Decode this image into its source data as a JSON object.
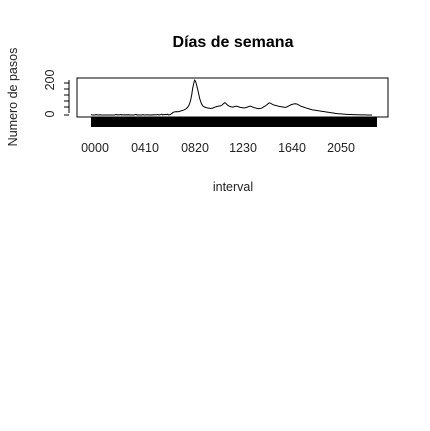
{
  "chart_data": {
    "type": "line",
    "title": "Días de semana",
    "xlabel": "interval",
    "ylabel": "Numero de pasos",
    "x_tick_labels": [
      "0000",
      "0410",
      "0820",
      "1230",
      "1640",
      "2050"
    ],
    "y_tick_labels": [
      "0",
      "200"
    ],
    "xlim": [
      0,
      287
    ],
    "ylim": [
      0,
      230
    ],
    "grid": false,
    "series": [
      {
        "values": [
          2.3,
          0.5,
          0.2,
          0.2,
          0.1,
          2.3,
          0.5,
          0.9,
          0,
          1.6,
          0.3,
          0.2,
          0.4,
          0,
          0,
          0,
          0,
          0,
          0,
          0,
          0,
          0,
          0,
          0,
          0,
          4.2,
          0.7,
          1.3,
          0.7,
          2,
          3.2,
          0,
          2.2,
          0,
          1.7,
          0,
          2.5,
          0,
          2.5,
          0,
          0.2,
          0,
          0,
          0,
          1.8,
          4.4,
          0.4,
          0.5,
          0,
          0,
          0,
          0,
          2.2,
          0.5,
          0,
          0.7,
          0.7,
          0.5,
          1.2,
          0.2,
          0.7,
          0,
          1.5,
          0.6,
          1.5,
          1.3,
          0.7,
          3.9,
          0,
          1.8,
          2.6,
          5.6,
          0.5,
          3,
          2.2,
          4.2,
          2,
          5.6,
          0.2,
          2,
          5.5,
          9.7,
          15.2,
          19.3,
          20.4,
          21.7,
          22.3,
          21,
          22,
          24.3,
          26.5,
          28.4,
          30.1,
          32.5,
          35.5,
          39.4,
          44.3,
          50.8,
          60.5,
          75.8,
          97.3,
          130.3,
          174.2,
          206,
          230,
          220,
          196,
          170,
          141,
          110,
          89,
          72,
          62,
          56,
          52,
          50,
          48,
          47,
          45,
          44,
          43,
          44,
          45,
          48,
          51,
          53,
          55,
          57,
          58,
          59,
          60,
          63,
          68,
          75,
          80,
          79,
          72,
          65,
          60,
          57,
          55,
          53,
          52,
          53,
          55,
          57,
          58,
          56,
          54,
          52,
          50,
          49,
          48,
          47,
          46,
          48,
          50,
          52,
          55,
          57,
          58,
          56,
          53,
          50,
          48,
          46,
          44,
          43,
          42,
          42,
          43,
          45,
          48,
          52,
          56,
          60,
          65,
          70,
          76,
          80,
          78,
          74,
          70,
          67,
          65,
          63,
          62,
          60,
          58,
          56,
          55,
          54,
          53,
          52,
          51,
          50,
          52,
          55,
          58,
          62,
          65,
          68,
          70,
          72,
          73,
          74,
          73,
          71,
          68,
          64,
          60,
          57,
          55,
          53,
          50,
          48,
          46,
          44,
          42,
          40,
          38,
          36,
          34,
          33,
          32,
          31,
          30,
          29,
          28,
          27,
          26,
          25,
          24,
          23,
          22,
          21,
          20,
          19,
          18,
          17,
          16,
          15,
          14,
          13,
          12,
          11,
          10,
          9,
          8.5,
          8,
          7.5,
          7,
          6.5,
          6,
          5.5,
          5,
          4.5,
          4,
          3.8,
          3.5,
          3.2,
          3,
          2.8,
          2.5,
          2.3,
          2.1,
          1.9,
          1.7,
          1.5,
          1.3,
          1.1,
          1,
          0.9,
          0.8,
          0.7,
          0.6,
          0.5,
          0.4,
          0.3,
          0.2,
          0.2,
          0.1,
          0.1
        ]
      }
    ]
  }
}
